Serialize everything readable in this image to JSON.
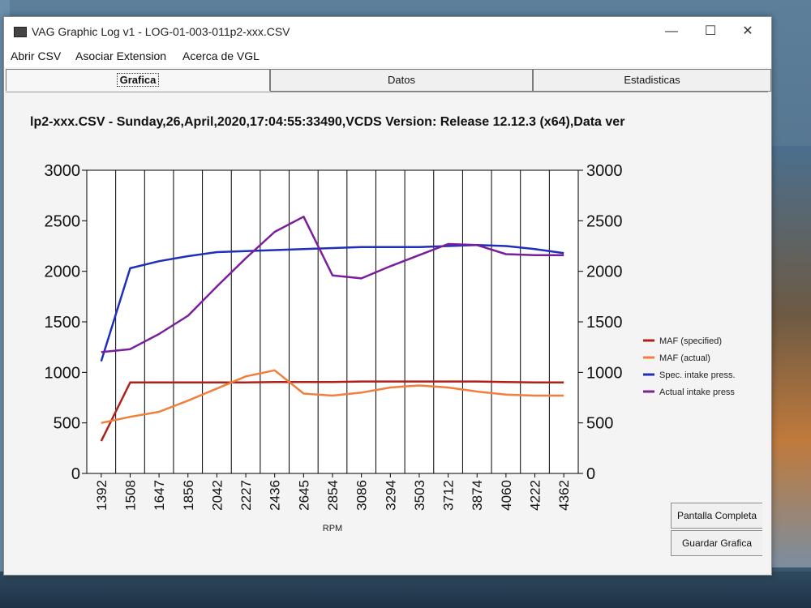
{
  "window": {
    "title": "VAG Graphic Log  v1 -  LOG-01-003-011p2-xxx.CSV",
    "minimize_icon": "minimize-icon",
    "maximize_icon": "maximize-icon",
    "close_icon": "close-icon"
  },
  "menu": [
    "Abrir CSV",
    "Asociar Extension",
    "Acerca de VGL"
  ],
  "tabs": [
    "Grafica",
    "Datos",
    "Estadisticas"
  ],
  "active_tab": 0,
  "buttons": {
    "fullscreen": "Pantalla Completa",
    "save": "Guardar Grafica"
  },
  "chart_data": {
    "type": "line",
    "title": "lp2-xxx.CSV - Sunday,26,April,2020,17:04:55:33490,VCDS Version: Release 12.12.3 (x64),Data ver",
    "xlabel": "RPM",
    "categories": [
      "1392",
      "1508",
      "1647",
      "1856",
      "2042",
      "2227",
      "2436",
      "2645",
      "2854",
      "3086",
      "3294",
      "3503",
      "3712",
      "3874",
      "4060",
      "4222",
      "4362"
    ],
    "ylim": [
      0,
      3000
    ],
    "yticks": [
      0,
      500,
      1000,
      1500,
      2000,
      2500,
      3000
    ],
    "grid": true,
    "legend_position": "right",
    "series": [
      {
        "name": "MAF (specified)",
        "color": "#b0201b",
        "values": [
          320,
          900,
          900,
          900,
          900,
          900,
          905,
          905,
          905,
          910,
          910,
          910,
          910,
          910,
          905,
          900,
          900
        ]
      },
      {
        "name": "MAF (actual)",
        "color": "#f07f3c",
        "values": [
          500,
          560,
          610,
          720,
          840,
          960,
          1020,
          790,
          770,
          800,
          850,
          870,
          850,
          810,
          780,
          770,
          770
        ]
      },
      {
        "name": "Spec. intake press.",
        "color": "#1f2fb8",
        "values": [
          1110,
          2030,
          2100,
          2150,
          2190,
          2200,
          2210,
          2220,
          2230,
          2240,
          2240,
          2240,
          2250,
          2260,
          2250,
          2220,
          2180
        ]
      },
      {
        "name": "Actual intake press",
        "color": "#7a1f9c",
        "values": [
          1200,
          1230,
          1380,
          1560,
          1850,
          2130,
          2390,
          2540,
          1960,
          1930,
          2050,
          2160,
          2270,
          2260,
          2170,
          2160,
          2160
        ]
      }
    ]
  }
}
